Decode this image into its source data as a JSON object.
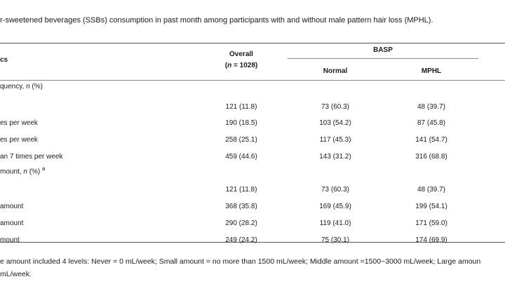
{
  "caption": "r-sweetened beverages (SSBs) consumption in past month among participants with and without male pattern hair loss (MPHL).",
  "table": {
    "col_char_header": "cs",
    "col_overall_header": "Overall",
    "col_overall_n": "(n = 1028)",
    "col_group_header": "BASP",
    "col_normal_header": "Normal",
    "col_mphl_header": "MPHL",
    "sections": [
      {
        "label": "quency, n (%)",
        "rows": [
          {
            "label": "",
            "overall": "121 (11.8)",
            "normal": "73 (60.3)",
            "mphl": "48 (39.7)"
          },
          {
            "label": "es per week",
            "overall": "190 (18.5)",
            "normal": "103 (54.2)",
            "mphl": "87 (45.8)"
          },
          {
            "label": "es per week",
            "overall": "258 (25.1)",
            "normal": "117 (45.3)",
            "mphl": "141 (54.7)"
          },
          {
            "label": "an 7 times per week",
            "overall": "459 (44.6)",
            "normal": "143 (31.2)",
            "mphl": "316 (68.8)"
          }
        ]
      },
      {
        "label": "mount, n (%) a",
        "rows": [
          {
            "label": "",
            "overall": "121 (11.8)",
            "normal": "73 (60.3)",
            "mphl": "48 (39.7)"
          },
          {
            "label": "amount",
            "overall": "368 (35.8)",
            "normal": "169 (45.9)",
            "mphl": "199 (54.1)"
          },
          {
            "label": "amount",
            "overall": "290 (28.2)",
            "normal": "119 (41.0)",
            "mphl": "171 (59.0)"
          },
          {
            "label": "mount",
            "overall": "249 (24.2)",
            "normal": "75 (30.1)",
            "mphl": "174 (69.9)"
          }
        ]
      }
    ]
  },
  "footnote_line1": "e amount included 4 levels: Never = 0 mL/week; Small amount = no more than 1500 mL/week; Middle amount =1500~3000 mL/week; Large amoun",
  "footnote_line2": "mL/week."
}
